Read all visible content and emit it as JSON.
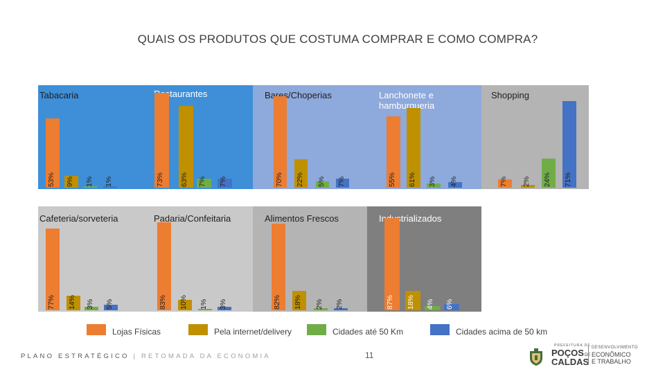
{
  "title": "QUAIS OS PRODUTOS QUE COSTUMA COMPRAR E COMO COMPRA?",
  "colors": {
    "lojas_fisicas": "#ED7D31",
    "internet": "#BF9000",
    "ate_50km": "#70AD47",
    "acima_50km": "#4472C4",
    "blue_panel": "#3E8FD8",
    "light_blue_panel": "#8EA9DB",
    "gray_panel": "#B4B4B4",
    "light_gray_panel": "#C9C9C9",
    "dark_gray_panel": "#7F7F7F"
  },
  "legend": [
    {
      "label": "Lojas Físicas",
      "color": "#ED7D31"
    },
    {
      "label": "Pela internet/delivery",
      "color": "#BF9000"
    },
    {
      "label": "Cidades até 50 Km",
      "color": "#70AD47"
    },
    {
      "label": "Cidades acima de 50 km",
      "color": "#4472C4"
    }
  ],
  "chart_data": [
    {
      "type": "bar",
      "title": "Tabacaria",
      "categories": [
        "Lojas Físicas",
        "Pela internet/delivery",
        "Cidades até 50 Km",
        "Cidades acima de 50 km"
      ],
      "values": [
        53,
        9,
        1,
        1
      ],
      "labels": [
        "53%",
        "9%",
        "1%",
        "1%"
      ],
      "ylim": [
        0,
        100
      ]
    },
    {
      "type": "bar",
      "title": "Restaurantes",
      "categories": [
        "Lojas Físicas",
        "Pela internet/delivery",
        "Cidades até 50 Km",
        "Cidades acima de 50 km"
      ],
      "values": [
        73,
        63,
        7,
        7
      ],
      "labels": [
        "73%",
        "63%",
        "7%",
        "7%"
      ],
      "ylim": [
        0,
        100
      ]
    },
    {
      "type": "bar",
      "title": "Bares/Choperias",
      "categories": [
        "Lojas Físicas",
        "Pela internet/delivery",
        "Cidades até 50 Km",
        "Cidades acima de 50 km"
      ],
      "values": [
        70,
        22,
        5,
        7
      ],
      "labels": [
        "70%",
        "22%",
        "5%",
        "7%"
      ],
      "ylim": [
        0,
        100
      ]
    },
    {
      "type": "bar",
      "title": "Lanchonete e hamburgueria",
      "categories": [
        "Lojas Físicas",
        "Pela internet/delivery",
        "Cidades até 50 Km",
        "Cidades acima de 50 km"
      ],
      "values": [
        55,
        61,
        3,
        4
      ],
      "labels": [
        "55%",
        "61%",
        "3%",
        "4%"
      ],
      "ylim": [
        0,
        100
      ]
    },
    {
      "type": "bar",
      "title": "Shopping",
      "categories": [
        "Lojas Físicas",
        "Pela internet/delivery",
        "Cidades até 50 Km",
        "Cidades acima de 50 km"
      ],
      "values": [
        7,
        2,
        24,
        71
      ],
      "labels": [
        "7%",
        "2%",
        "24%",
        "71%"
      ],
      "ylim": [
        0,
        100
      ]
    },
    {
      "type": "bar",
      "title": "Cafeteria/sorveteria",
      "categories": [
        "Lojas Físicas",
        "Pela internet/delivery",
        "Cidades até 50 Km",
        "Cidades acima de 50 km"
      ],
      "values": [
        77,
        14,
        3,
        5
      ],
      "labels": [
        "77%",
        "14%",
        "3%",
        "5%"
      ],
      "ylim": [
        0,
        100
      ]
    },
    {
      "type": "bar",
      "title": "Padaria/Confeitaria",
      "categories": [
        "Lojas Físicas",
        "Pela internet/delivery",
        "Cidades até 50 Km",
        "Cidades acima de 50 km"
      ],
      "values": [
        83,
        10,
        1,
        3
      ],
      "labels": [
        "83%",
        "10%",
        "1%",
        "3%"
      ],
      "ylim": [
        0,
        100
      ]
    },
    {
      "type": "bar",
      "title": "Alimentos Frescos",
      "categories": [
        "Lojas Físicas",
        "Pela internet/delivery",
        "Cidades até 50 Km",
        "Cidades acima de 50 km"
      ],
      "values": [
        82,
        18,
        2,
        2
      ],
      "labels": [
        "82%",
        "18%",
        "2%",
        "2%"
      ],
      "ylim": [
        0,
        100
      ]
    },
    {
      "type": "bar",
      "title": "Industrializados",
      "categories": [
        "Lojas Físicas",
        "Pela internet/delivery",
        "Cidades até 50 Km",
        "Cidades acima de 50 km"
      ],
      "values": [
        87,
        18,
        4,
        6
      ],
      "labels": [
        "87%",
        "18%",
        "4%",
        "6%"
      ],
      "ylim": [
        0,
        100
      ]
    }
  ],
  "footer": {
    "left": "PLANO ESTRATÉGICO",
    "separator": "|",
    "right": "RETOMADA DA ECONOMIA",
    "page": "11"
  },
  "logo": {
    "org_line1": "PREFEITURA DE",
    "city1": "POÇOS",
    "city_de": "DE",
    "city2": "CALDAS",
    "dept_line1": "DESENVOLVIMENTO",
    "dept_line2": "ECONÔMICO",
    "dept_line3": "E TRABALHO"
  }
}
